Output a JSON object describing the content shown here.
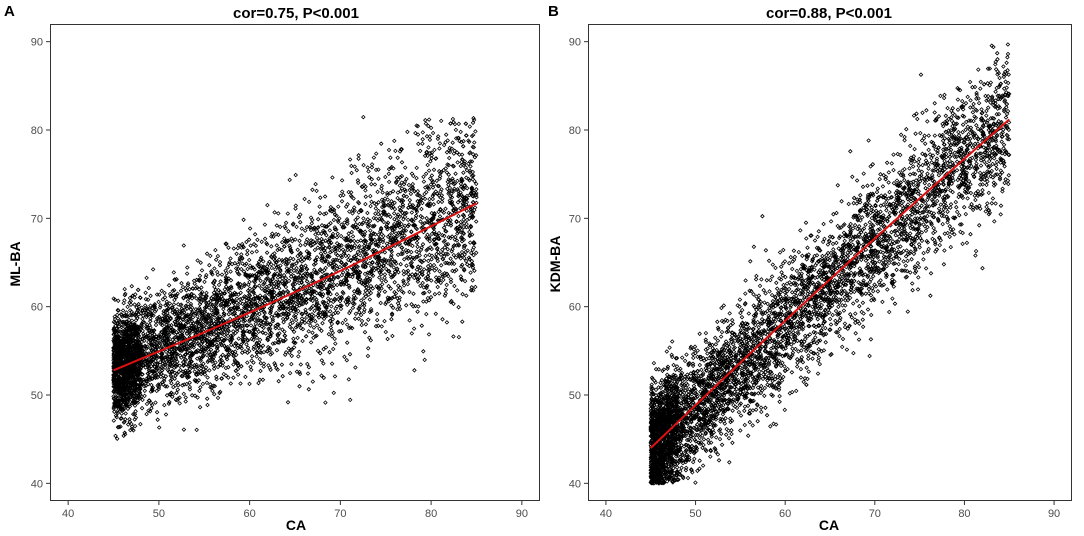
{
  "chart_data": [
    {
      "type": "scatter",
      "panel_label": "A",
      "title": "cor=0.75, P<0.001",
      "xlabel": "CA",
      "ylabel": "ML-BA",
      "xlim": [
        38,
        92
      ],
      "ylim": [
        38,
        92
      ],
      "xticks": [
        40,
        50,
        60,
        70,
        80,
        90
      ],
      "yticks": [
        40,
        50,
        60,
        70,
        80,
        90
      ],
      "grid": false,
      "x_range": [
        45,
        85
      ],
      "point_density_note": "dense cloud, higher density at younger ages",
      "correlation": 0.75,
      "fit_line": {
        "color": "#e01010",
        "x": [
          45,
          85
        ],
        "y": [
          52.8,
          71.7
        ]
      },
      "points": {
        "n": 5200,
        "residual_sd_young": 2.8,
        "residual_sd_old": 5.5,
        "y_min": 43.5,
        "y_max": 81.5
      }
    },
    {
      "type": "scatter",
      "panel_label": "B",
      "title": "cor=0.88, P<0.001",
      "xlabel": "CA",
      "ylabel": "KDM-BA",
      "xlim": [
        38,
        92
      ],
      "ylim": [
        38,
        92
      ],
      "xticks": [
        40,
        50,
        60,
        70,
        80,
        90
      ],
      "yticks": [
        40,
        50,
        60,
        70,
        80,
        90
      ],
      "grid": false,
      "x_range": [
        45,
        85
      ],
      "correlation": 0.88,
      "fit_line": {
        "color": "#e01010",
        "x": [
          45,
          85
        ],
        "y": [
          44.0,
          81.2
        ]
      },
      "points": {
        "n": 5200,
        "residual_sd_young": 3.2,
        "residual_sd_old": 4.2,
        "y_min": 40.0,
        "y_max": 89.8
      }
    }
  ]
}
